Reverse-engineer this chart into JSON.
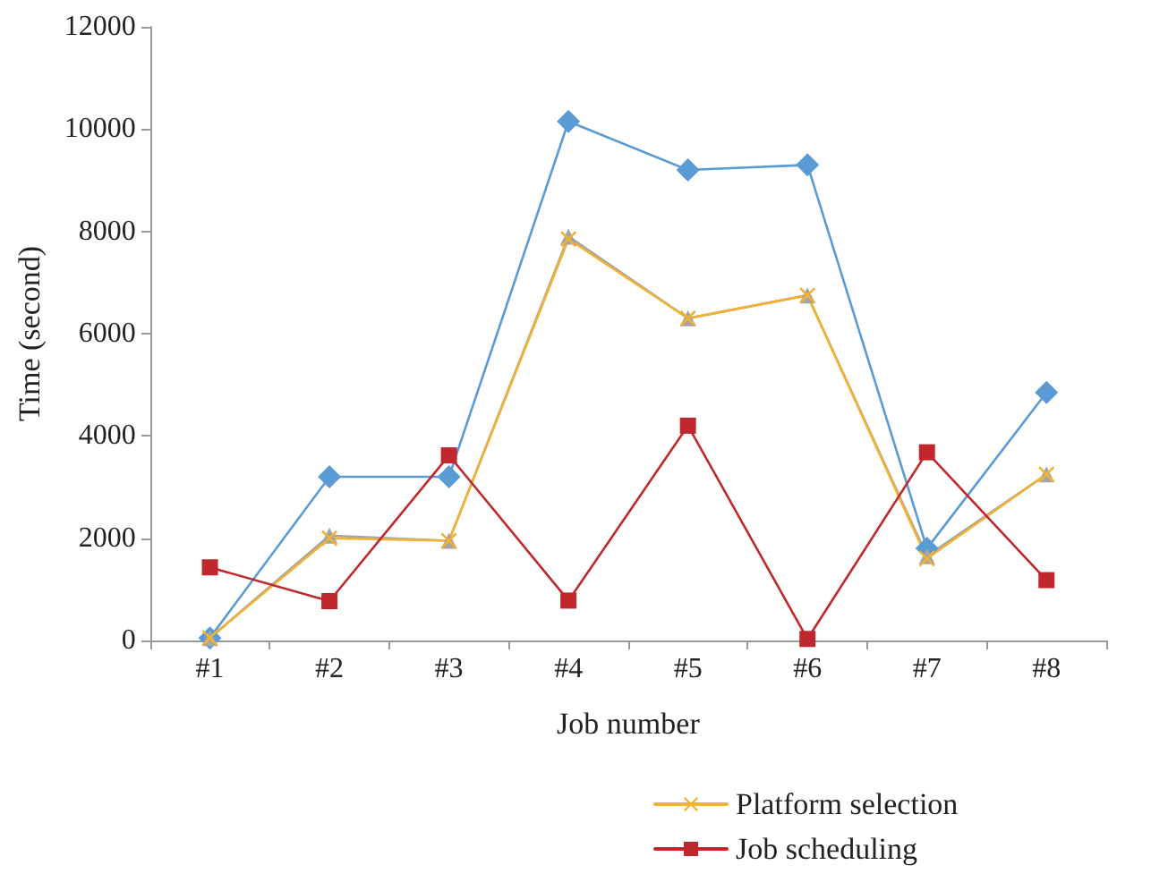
{
  "chart_data": {
    "type": "line",
    "xlabel": "Job number",
    "ylabel": "Time (second)",
    "categories": [
      "#1",
      "#2",
      "#3",
      "#4",
      "#5",
      "#6",
      "#7",
      "#8"
    ],
    "ylim": [
      0,
      12000
    ],
    "yticks": [
      0,
      2000,
      4000,
      6000,
      8000,
      10000,
      12000
    ],
    "grid": false,
    "legend": "bottom",
    "series": [
      {
        "color": "#5b9bd5",
        "marker": "diamond",
        "values": [
          50,
          3200,
          3200,
          10150,
          9200,
          9300,
          1800,
          4850
        ]
      },
      {
        "color": "#a5a5a5",
        "marker": "triangle",
        "values": [
          50,
          2050,
          1950,
          7900,
          6300,
          6750,
          1650,
          3250
        ]
      },
      {
        "name": "Platform selection",
        "color": "#f2b233",
        "marker": "cross",
        "values": [
          50,
          2000,
          1950,
          7850,
          6300,
          6750,
          1600,
          3250
        ]
      },
      {
        "name": "Job scheduling",
        "color": "#c0282d",
        "marker": "square",
        "values": [
          1430,
          770,
          3620,
          780,
          4200,
          30,
          3680,
          1180
        ]
      }
    ]
  }
}
